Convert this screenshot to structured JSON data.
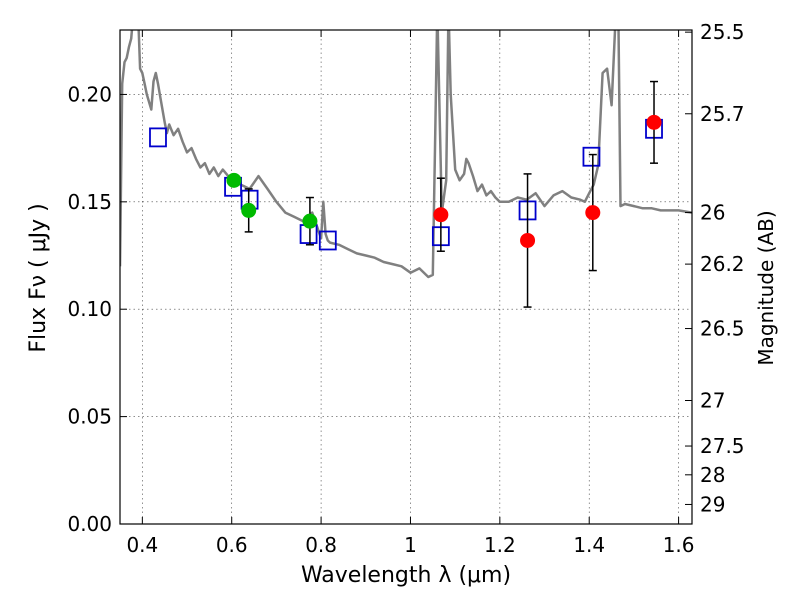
{
  "chart_data": {
    "type": "scatter",
    "xlabel": "Wavelength  λ (μm)",
    "ylabel_left": "Flux  Fν  ( μJy )",
    "ylabel_right": "Magnitude (AB)",
    "xlim": [
      0.35,
      1.63
    ],
    "ylim": [
      0.0,
      0.23
    ],
    "grid": true,
    "x_ticks": [
      {
        "value": 0.4,
        "label": "0.4"
      },
      {
        "value": 0.6,
        "label": "0.6"
      },
      {
        "value": 0.8,
        "label": "0.8"
      },
      {
        "value": 1.0,
        "label": "1"
      },
      {
        "value": 1.2,
        "label": "1.2"
      },
      {
        "value": 1.4,
        "label": "1.4"
      },
      {
        "value": 1.6,
        "label": "1.6"
      }
    ],
    "y_ticks": [
      {
        "value": 0.0,
        "label": "0.00"
      },
      {
        "value": 0.05,
        "label": "0.05"
      },
      {
        "value": 0.1,
        "label": "0.10"
      },
      {
        "value": 0.15,
        "label": "0.15"
      },
      {
        "value": 0.2,
        "label": "0.20"
      }
    ],
    "right_ticks": [
      {
        "label": "25.5",
        "flux": 0.229
      },
      {
        "label": "25.7",
        "flux": 0.191
      },
      {
        "label": "26",
        "flux": 0.145
      },
      {
        "label": "26.2",
        "flux": 0.121
      },
      {
        "label": "26.5",
        "flux": 0.091
      },
      {
        "label": "27",
        "flux": 0.0575
      },
      {
        "label": "27.5",
        "flux": 0.0363
      },
      {
        "label": "28",
        "flux": 0.0229
      },
      {
        "label": "29",
        "flux": 0.0091
      }
    ],
    "observed_green": {
      "color": "#00bb00",
      "points": [
        {
          "x": 0.605,
          "y": 0.16,
          "err": 0.0
        },
        {
          "x": 0.638,
          "y": 0.146,
          "err": 0.01
        },
        {
          "x": 0.775,
          "y": 0.141,
          "err": 0.011
        }
      ]
    },
    "observed_red": {
      "color": "#ff0000",
      "points": [
        {
          "x": 1.068,
          "y": 0.144,
          "err": 0.017
        },
        {
          "x": 1.262,
          "y": 0.132,
          "err": 0.031
        },
        {
          "x": 1.408,
          "y": 0.145,
          "err": 0.027
        },
        {
          "x": 1.545,
          "y": 0.187,
          "err": 0.019
        }
      ]
    },
    "model_squares": {
      "color": "#0000cc",
      "points": [
        {
          "x": 0.435,
          "y": 0.18
        },
        {
          "x": 0.603,
          "y": 0.157
        },
        {
          "x": 0.64,
          "y": 0.151
        },
        {
          "x": 0.772,
          "y": 0.135
        },
        {
          "x": 0.815,
          "y": 0.132
        },
        {
          "x": 1.068,
          "y": 0.134
        },
        {
          "x": 1.262,
          "y": 0.146
        },
        {
          "x": 1.405,
          "y": 0.171
        },
        {
          "x": 1.545,
          "y": 0.184
        }
      ]
    },
    "sed_model": {
      "color": "#808080",
      "x": [
        0.35,
        0.355,
        0.36,
        0.365,
        0.37,
        0.375,
        0.38,
        0.385,
        0.39,
        0.395,
        0.4,
        0.405,
        0.41,
        0.42,
        0.425,
        0.43,
        0.435,
        0.44,
        0.45,
        0.455,
        0.46,
        0.47,
        0.48,
        0.49,
        0.5,
        0.51,
        0.52,
        0.53,
        0.54,
        0.55,
        0.56,
        0.57,
        0.58,
        0.6,
        0.62,
        0.64,
        0.66,
        0.68,
        0.7,
        0.72,
        0.74,
        0.76,
        0.78,
        0.8,
        0.805,
        0.81,
        0.815,
        0.82,
        0.84,
        0.86,
        0.88,
        0.9,
        0.92,
        0.94,
        0.96,
        0.98,
        1.0,
        1.02,
        1.04,
        1.05,
        1.055,
        1.06,
        1.07,
        1.08,
        1.085,
        1.09,
        1.1,
        1.11,
        1.12,
        1.125,
        1.13,
        1.14,
        1.15,
        1.16,
        1.17,
        1.18,
        1.19,
        1.2,
        1.22,
        1.24,
        1.26,
        1.28,
        1.3,
        1.32,
        1.34,
        1.36,
        1.38,
        1.39,
        1.4,
        1.41,
        1.42,
        1.43,
        1.44,
        1.45,
        1.46,
        1.465,
        1.47,
        1.48,
        1.5,
        1.52,
        1.54,
        1.56,
        1.58,
        1.6,
        1.63
      ],
      "y": [
        0.12,
        0.205,
        0.215,
        0.217,
        0.222,
        0.226,
        0.238,
        0.235,
        0.24,
        0.212,
        0.21,
        0.205,
        0.2,
        0.193,
        0.206,
        0.21,
        0.205,
        0.199,
        0.187,
        0.182,
        0.186,
        0.181,
        0.184,
        0.178,
        0.173,
        0.175,
        0.17,
        0.166,
        0.168,
        0.163,
        0.166,
        0.162,
        0.165,
        0.16,
        0.158,
        0.156,
        0.162,
        0.156,
        0.15,
        0.145,
        0.143,
        0.141,
        0.145,
        0.133,
        0.15,
        0.135,
        0.132,
        0.131,
        0.13,
        0.128,
        0.126,
        0.125,
        0.124,
        0.122,
        0.121,
        0.12,
        0.117,
        0.119,
        0.115,
        0.116,
        0.175,
        0.24,
        0.145,
        0.16,
        0.24,
        0.2,
        0.165,
        0.16,
        0.163,
        0.17,
        0.168,
        0.162,
        0.155,
        0.158,
        0.153,
        0.155,
        0.152,
        0.15,
        0.15,
        0.152,
        0.151,
        0.154,
        0.148,
        0.153,
        0.155,
        0.152,
        0.151,
        0.15,
        0.154,
        0.158,
        0.167,
        0.21,
        0.212,
        0.195,
        0.24,
        0.24,
        0.148,
        0.149,
        0.148,
        0.147,
        0.147,
        0.146,
        0.146,
        0.146,
        0.145
      ]
    }
  }
}
